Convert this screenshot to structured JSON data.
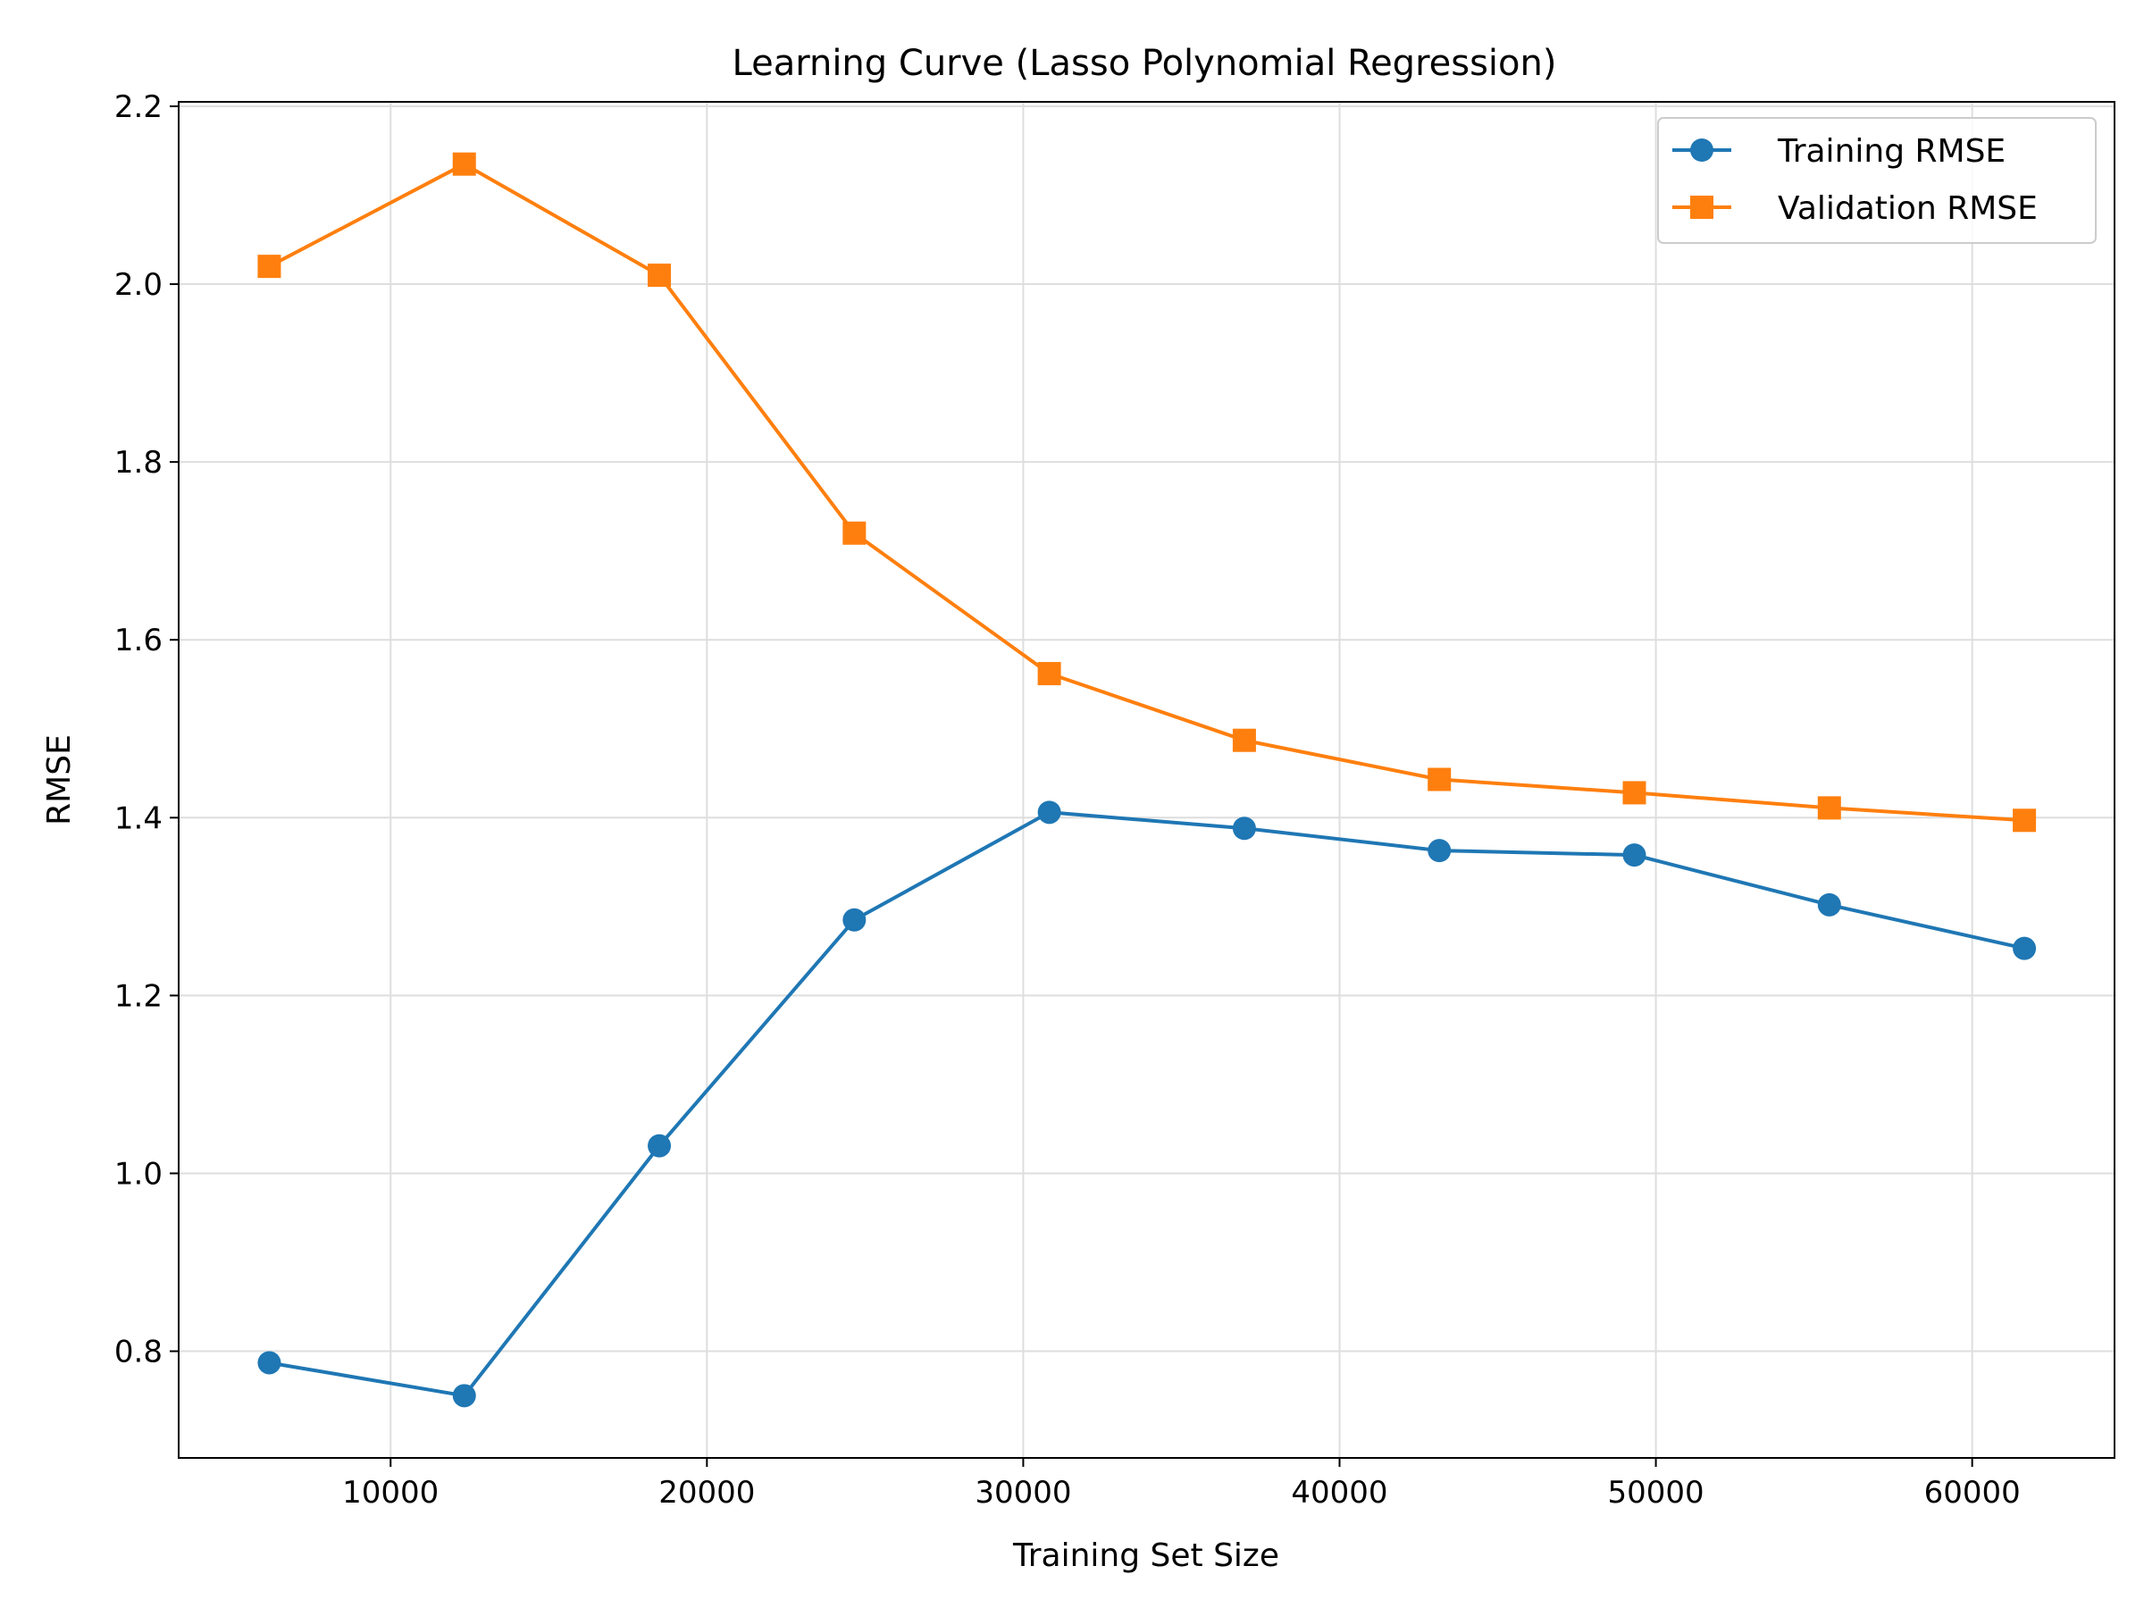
{
  "chart_data": {
    "type": "line",
    "title": "Learning Curve (Lasso Polynomial Regression)",
    "xlabel": "Training Set Size",
    "ylabel": "RMSE",
    "xlim": [
      3300,
      64500
    ],
    "ylim": [
      0.68,
      2.205
    ],
    "x_ticks": [
      {
        "value": 10000,
        "label": "10000"
      },
      {
        "value": 20000,
        "label": "20000"
      },
      {
        "value": 30000,
        "label": "30000"
      },
      {
        "value": 40000,
        "label": "40000"
      },
      {
        "value": 50000,
        "label": "50000"
      },
      {
        "value": 60000,
        "label": "60000"
      }
    ],
    "y_ticks": [
      {
        "value": 0.8,
        "label": "0.8"
      },
      {
        "value": 1.0,
        "label": "1.0"
      },
      {
        "value": 1.2,
        "label": "1.2"
      },
      {
        "value": 1.4,
        "label": "1.4"
      },
      {
        "value": 1.6,
        "label": "1.6"
      },
      {
        "value": 1.8,
        "label": "1.8"
      },
      {
        "value": 2.0,
        "label": "2.0"
      },
      {
        "value": 2.2,
        "label": "2.2"
      }
    ],
    "grid": true,
    "legend_position": "top-right",
    "x": [
      6165,
      12330,
      18495,
      24660,
      30825,
      36990,
      43155,
      49320,
      55485,
      61650
    ],
    "series": [
      {
        "name": "Training RMSE",
        "color": "#1f77b4",
        "marker": "circle",
        "values": [
          0.787,
          0.75,
          1.031,
          1.285,
          1.406,
          1.388,
          1.363,
          1.358,
          1.302,
          1.253
        ]
      },
      {
        "name": "Validation RMSE",
        "color": "#ff7f0e",
        "marker": "square",
        "values": [
          2.02,
          2.135,
          2.01,
          1.72,
          1.562,
          1.487,
          1.443,
          1.428,
          1.411,
          1.397
        ]
      }
    ]
  }
}
